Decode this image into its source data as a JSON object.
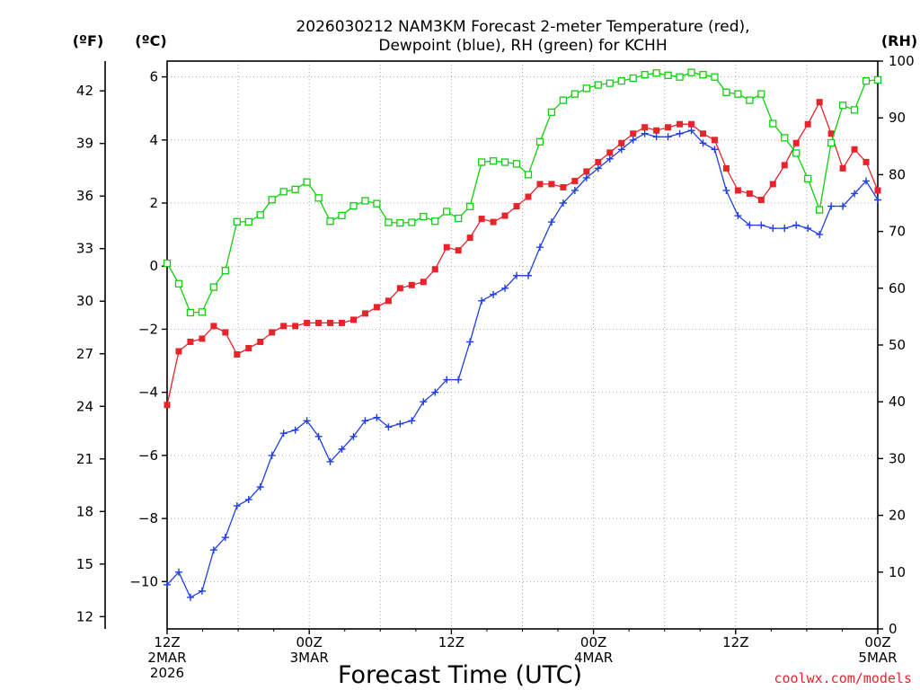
{
  "chart_data": {
    "type": "line",
    "title_line1": "2026030212 NAM3KM Forecast 2-meter Temperature (red),",
    "title_line2": "Dewpoint (blue), RH (green) for KCHH",
    "left_outer_unit": "(ºF)",
    "left_inner_unit": "(ºC)",
    "right_unit": "(RH)",
    "xlabel": "Forecast Time (UTC)",
    "credit": "coolwx.com/models",
    "x_range": [
      0,
      60
    ],
    "celsius_range": [
      -11.5,
      6.5
    ],
    "rh_range": [
      0,
      100
    ],
    "celsius_ticks": [
      6,
      4,
      2,
      0,
      -2,
      -4,
      -6,
      -8,
      -10
    ],
    "fahrenheit_ticks": [
      42,
      39,
      36,
      33,
      30,
      27,
      24,
      21,
      18,
      15,
      12
    ],
    "rh_ticks": [
      100,
      90,
      80,
      70,
      60,
      50,
      40,
      30,
      20,
      10,
      0
    ],
    "x_ticks": [
      {
        "hour": 0,
        "lines": [
          "12Z",
          "2MAR",
          "2026"
        ]
      },
      {
        "hour": 12,
        "lines": [
          "00Z",
          "3MAR"
        ]
      },
      {
        "hour": 24,
        "lines": [
          "12Z"
        ]
      },
      {
        "hour": 36,
        "lines": [
          "00Z",
          "4MAR"
        ]
      },
      {
        "hour": 48,
        "lines": [
          "12Z"
        ]
      },
      {
        "hour": 60,
        "lines": [
          "00Z",
          "5MAR"
        ]
      }
    ],
    "series": [
      {
        "name": "2-meter Temperature",
        "unit": "C",
        "color": "#e8232b",
        "marker": "filled-square",
        "values": [
          -4.4,
          -2.7,
          -2.4,
          -2.3,
          -1.9,
          -2.1,
          -2.8,
          -2.6,
          -2.4,
          -2.1,
          -1.9,
          -1.9,
          -1.8,
          -1.8,
          -1.8,
          -1.8,
          -1.7,
          -1.5,
          -1.3,
          -1.1,
          -0.7,
          -0.6,
          -0.5,
          -0.1,
          0.6,
          0.5,
          0.9,
          1.5,
          1.4,
          1.6,
          1.9,
          2.2,
          2.6,
          2.6,
          2.5,
          2.7,
          3.0,
          3.3,
          3.6,
          3.9,
          4.2,
          4.4,
          4.3,
          4.4,
          4.5,
          4.5,
          4.2,
          4.0,
          3.1,
          2.4,
          2.3,
          2.1,
          2.6,
          3.2,
          3.9,
          4.5,
          5.2,
          4.2,
          3.1,
          3.7,
          3.3,
          2.4
        ]
      },
      {
        "name": "Dewpoint",
        "unit": "C",
        "color": "#2040e0",
        "marker": "plus",
        "values": [
          -10.1,
          -9.7,
          -10.5,
          -10.3,
          -9.0,
          -8.6,
          -7.6,
          -7.4,
          -7.0,
          -6.0,
          -5.3,
          -5.2,
          -4.9,
          -5.4,
          -6.2,
          -5.8,
          -5.4,
          -4.9,
          -4.8,
          -5.1,
          -5.0,
          -4.9,
          -4.3,
          -4.0,
          -3.6,
          -3.6,
          -2.4,
          -1.1,
          -0.9,
          -0.7,
          -0.3,
          -0.3,
          0.6,
          1.4,
          2.0,
          2.4,
          2.8,
          3.1,
          3.4,
          3.7,
          4.0,
          4.2,
          4.1,
          4.1,
          4.2,
          4.3,
          3.9,
          3.7,
          2.4,
          1.6,
          1.3,
          1.3,
          1.2,
          1.2,
          1.3,
          1.2,
          1.0,
          1.9,
          1.9,
          2.3,
          2.7,
          2.1
        ]
      },
      {
        "name": "RH",
        "unit": "%",
        "color": "#10d010",
        "marker": "open-square",
        "values": [
          64.4,
          60.8,
          55.7,
          55.8,
          60.2,
          63.1,
          71.7,
          71.7,
          72.9,
          75.6,
          77.0,
          77.4,
          78.7,
          75.9,
          71.8,
          72.8,
          74.5,
          75.4,
          74.9,
          71.6,
          71.5,
          71.6,
          72.6,
          71.8,
          73.5,
          72.3,
          74.4,
          82.2,
          82.4,
          82.2,
          81.9,
          80.0,
          85.8,
          91.0,
          93.1,
          94.2,
          95.2,
          95.8,
          96.1,
          96.5,
          97.0,
          97.6,
          97.9,
          97.5,
          97.2,
          98.0,
          97.6,
          97.2,
          94.5,
          94.2,
          93.1,
          94.2,
          89.0,
          86.5,
          83.8,
          79.3,
          73.8,
          85.6,
          92.2,
          91.4,
          96.5,
          96.7
        ]
      }
    ]
  }
}
